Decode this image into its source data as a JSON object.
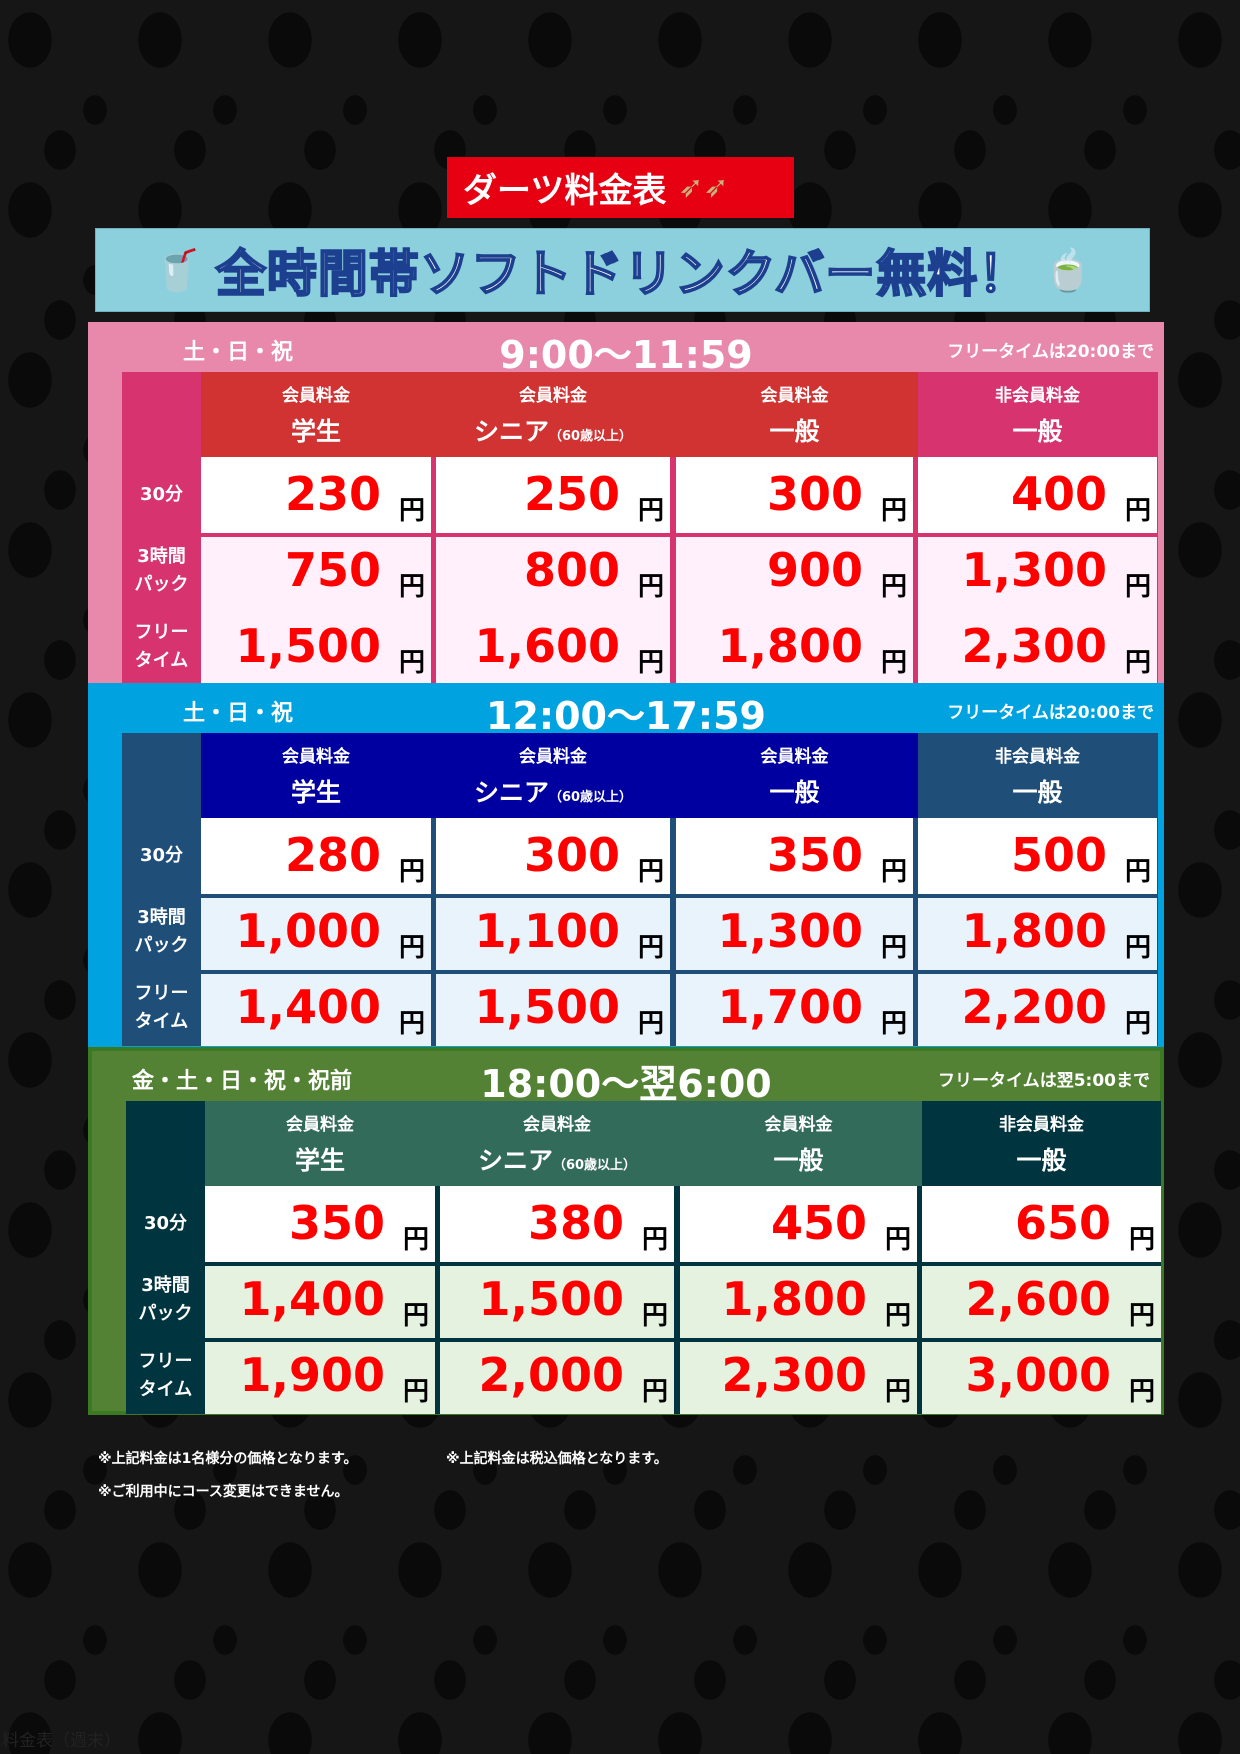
{
  "title": "ダーツ料金表",
  "banner": "全時間帯ソフトドリンクバー無料！",
  "columns": [
    {
      "top": "会員料金",
      "main": "学生",
      "sub": ""
    },
    {
      "top": "会員料金",
      "main": "シニア",
      "sub": "（60歳以上）"
    },
    {
      "top": "会員料金",
      "main": "一般",
      "sub": ""
    },
    {
      "top": "非会員料金",
      "main": "一般",
      "sub": ""
    }
  ],
  "row_labels": [
    [
      "30分"
    ],
    [
      "3時間",
      "パック"
    ],
    [
      "フリー",
      "タイム"
    ]
  ],
  "yen": "円",
  "sections": [
    {
      "days": "土・日・祝",
      "time": "9:00〜11:59",
      "note": "フリータイムは20:00まで",
      "colors": {
        "outer": "#e889ab",
        "label": "#d6336f",
        "member": "#d13232",
        "nonmember": "#d6336f",
        "row_light": "#fff0fb",
        "line": "#d6336f"
      },
      "prices": [
        [
          "230",
          "250",
          "300",
          "400"
        ],
        [
          "750",
          "800",
          "900",
          "1,300"
        ],
        [
          "1,500",
          "1,600",
          "1,800",
          "2,300"
        ]
      ]
    },
    {
      "days": "土・日・祝",
      "time": "12:00〜17:59",
      "note": "フリータイムは20:00まで",
      "colors": {
        "outer": "#00a3df",
        "label": "#1f4e79",
        "member": "#0000a0",
        "nonmember": "#1f4e79",
        "row_light": "#e8f3fc",
        "line": "#1f4e79"
      },
      "prices": [
        [
          "280",
          "300",
          "350",
          "500"
        ],
        [
          "1,000",
          "1,100",
          "1,300",
          "1,800"
        ],
        [
          "1,400",
          "1,500",
          "1,700",
          "2,200"
        ]
      ]
    },
    {
      "days": "金・土・日・祝・祝前",
      "time": "18:00〜翌6:00",
      "note": "フリータイムは翌5:00まで",
      "colors": {
        "outer": "#548235",
        "label": "#00343f",
        "member": "#336b5a",
        "nonmember": "#00343f",
        "row_light": "#e6f2e0",
        "line": "#00343f"
      },
      "prices": [
        [
          "350",
          "380",
          "450",
          "650"
        ],
        [
          "1,400",
          "1,500",
          "1,800",
          "2,600"
        ],
        [
          "1,900",
          "2,000",
          "2,300",
          "3,000"
        ]
      ]
    }
  ],
  "notes": [
    "※上記料金は1名様分の価格となります。",
    "※上記料金は税込価格となります。",
    "※ご利用中にコース変更はできません。"
  ],
  "caption": "料金表（週末）"
}
